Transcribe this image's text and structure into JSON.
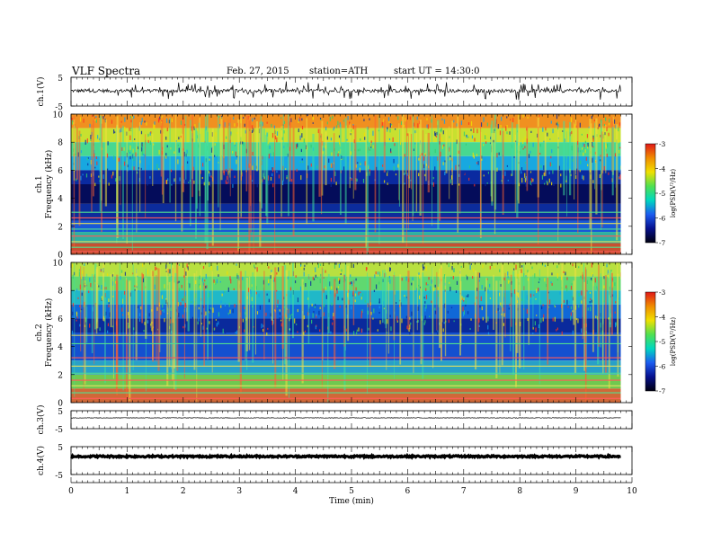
{
  "header": {
    "title": "VLF  Spectra",
    "date": "Feb. 27, 2015",
    "station": "station=ATH",
    "start": "start  UT =   14:30:0"
  },
  "colorscale": {
    "label": "log(PSD(V²/Hz)",
    "ticks": [
      "-3",
      "-4",
      "-5",
      "-6",
      "-7"
    ],
    "colors": [
      "#e01818",
      "#f08c00",
      "#f0e000",
      "#50e050",
      "#00d8c0",
      "#1c5cf0",
      "#06108e",
      "#000010"
    ]
  },
  "chart_data": [
    {
      "type": "line",
      "panel": "ch1-waveform",
      "ylabel": "ch.1(V)",
      "yticks": [
        "5",
        "-5"
      ],
      "ylim": [
        -5,
        5
      ],
      "xlim": [
        0,
        10
      ],
      "data_extent_min": 9.8,
      "baseline": 0.3,
      "noise_amp": 0.6,
      "spike_count": 120,
      "spike_amp": 3.0
    },
    {
      "type": "heatmap",
      "panel": "ch1-spectrogram",
      "ylabel": "ch.1\nFrequency  (kHz)",
      "yticks": [
        "10",
        "8",
        "6",
        "4",
        "2",
        "0"
      ],
      "ylim": [
        0,
        10
      ],
      "xlim": [
        0,
        10
      ],
      "data_extent_min": 9.8,
      "bands": [
        {
          "f0": 9.0,
          "f1": 10.0,
          "color": "#f09020"
        },
        {
          "f0": 8.0,
          "f1": 9.0,
          "color": "#c8e030"
        },
        {
          "f0": 7.0,
          "f1": 8.0,
          "color": "#48d890"
        },
        {
          "f0": 6.0,
          "f1": 7.0,
          "color": "#18a8e0"
        },
        {
          "f0": 5.0,
          "f1": 6.0,
          "color": "#0a2aa0"
        },
        {
          "f0": 3.6,
          "f1": 5.0,
          "color": "#040c5a"
        },
        {
          "f0": 2.4,
          "f1": 3.6,
          "color": "#0c2c9c"
        },
        {
          "f0": 1.6,
          "f1": 2.4,
          "color": "#1858d8"
        },
        {
          "f0": 0.8,
          "f1": 1.6,
          "color": "#30b0a0"
        },
        {
          "f0": 0.0,
          "f1": 0.8,
          "color": "#c85030"
        }
      ],
      "lines_khz": [
        0.2,
        0.5,
        0.9,
        1.3,
        1.8,
        2.2,
        2.6,
        3.0
      ],
      "bursts": 150
    },
    {
      "type": "heatmap",
      "panel": "ch2-spectrogram",
      "ylabel": "ch.2\nFrequency  (kHz)",
      "yticks": [
        "10",
        "8",
        "6",
        "4",
        "2",
        "0"
      ],
      "ylim": [
        0,
        10
      ],
      "xlim": [
        0,
        10
      ],
      "data_extent_min": 9.8,
      "bands": [
        {
          "f0": 9.0,
          "f1": 10.0,
          "color": "#b8e040"
        },
        {
          "f0": 8.0,
          "f1": 9.0,
          "color": "#60d870"
        },
        {
          "f0": 7.0,
          "f1": 8.0,
          "color": "#20b8c8"
        },
        {
          "f0": 6.0,
          "f1": 7.0,
          "color": "#1068d8"
        },
        {
          "f0": 5.0,
          "f1": 6.0,
          "color": "#0a2a9c"
        },
        {
          "f0": 3.0,
          "f1": 5.0,
          "color": "#1450d0"
        },
        {
          "f0": 2.0,
          "f1": 3.0,
          "color": "#28a0c8"
        },
        {
          "f0": 1.0,
          "f1": 2.0,
          "color": "#70c850"
        },
        {
          "f0": 0.0,
          "f1": 1.0,
          "color": "#d06838"
        }
      ],
      "lines_khz": [
        0.3,
        0.7,
        1.2,
        1.6,
        2.1,
        2.6,
        3.2,
        4.2,
        4.8
      ],
      "bursts": 150
    },
    {
      "type": "line",
      "panel": "ch3-waveform",
      "ylabel": "ch.3(V)",
      "yticks": [
        "5",
        "-5"
      ],
      "ylim": [
        -5,
        5
      ],
      "xlim": [
        0,
        10
      ],
      "data_extent_min": 9.8,
      "baseline": 1.0,
      "noise_amp": 0.15,
      "spike_count": 0,
      "spike_amp": 0
    },
    {
      "type": "line",
      "panel": "ch4-waveform",
      "ylabel": "ch.4(V)",
      "yticks": [
        "5",
        "-5"
      ],
      "ylim": [
        -5,
        5
      ],
      "xlim": [
        0,
        10
      ],
      "data_extent_min": 9.8,
      "baseline": 1.5,
      "noise_amp": 0.3,
      "spike_count": 0,
      "spike_amp": 0,
      "thick": true
    }
  ],
  "xaxis": {
    "label": "Time  (min)",
    "ticks": [
      "0",
      "1",
      "2",
      "3",
      "4",
      "5",
      "6",
      "7",
      "8",
      "9",
      "10"
    ],
    "xlim": [
      0,
      10
    ]
  }
}
